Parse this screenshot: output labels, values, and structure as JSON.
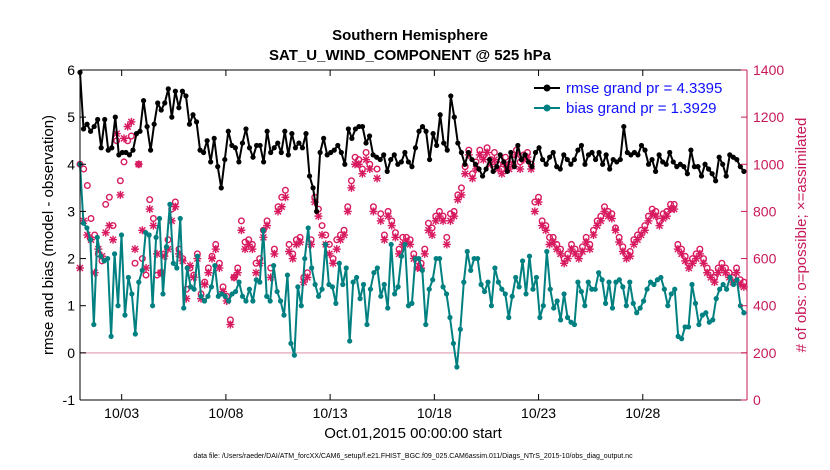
{
  "chart_data": {
    "type": "line",
    "title": "Southern Hemisphere",
    "subtitle": "SAT_U_WIND_COMPONENT @ 525 hPa",
    "xlabel": "Oct.01,2015 00:00:00 start",
    "ylabel": "rmse and bias (model - observation)",
    "y2label": "# of obs: o=possible; ×=assimilated",
    "footnote": "data file: /Users/raeder/DAI/ATM_forcXX/CAM6_setup/f.e21.FHIST_BGC.f09_025.CAM6assim.011/Diags_NTrS_2015-10/obs_diag_output.nc",
    "xlim": [
      1,
      33
    ],
    "ylim": [
      -1,
      6
    ],
    "y2lim": [
      0,
      1400
    ],
    "x_ticks": [
      3,
      8,
      13,
      18,
      23,
      28
    ],
    "x_tick_labels": [
      "10/03",
      "10/08",
      "10/13",
      "10/18",
      "10/23",
      "10/28"
    ],
    "y_ticks": [
      -1,
      0,
      1,
      2,
      3,
      4,
      5,
      6
    ],
    "y_tick_labels": [
      "-1",
      "0",
      "1",
      "2",
      "3",
      "4",
      "5",
      "6"
    ],
    "y2_ticks": [
      0,
      200,
      400,
      600,
      800,
      1000,
      1200,
      1400
    ],
    "y2_tick_labels": [
      "0",
      "200",
      "400",
      "600",
      "800",
      "1000",
      "1200",
      "1400"
    ],
    "zero_line": 0,
    "legend": {
      "location": "top-right"
    },
    "series": [
      {
        "name": "rmse grand pr = 4.3395",
        "axis": "left",
        "color": "#000000",
        "values": [
          5.95,
          4.75,
          4.85,
          4.7,
          4.8,
          4.95,
          4.35,
          4.95,
          4.3,
          4.35,
          5.0,
          4.2,
          4.25,
          4.25,
          4.2,
          4.3,
          4.65,
          4.7,
          5.35,
          4.8,
          4.3,
          4.85,
          5.3,
          5.15,
          5.3,
          5.6,
          5.0,
          5.55,
          5.2,
          5.55,
          5.45,
          4.85,
          5.05,
          4.9,
          4.3,
          4.25,
          4.5,
          4.05,
          4.55,
          3.95,
          3.5,
          4.1,
          4.7,
          4.4,
          4.35,
          4.05,
          4.45,
          4.75,
          4.35,
          4.15,
          4.4,
          4.4,
          4.05,
          4.7,
          4.25,
          4.35,
          4.45,
          4.25,
          4.7,
          4.2,
          4.65,
          4.35,
          4.45,
          4.35,
          4.65,
          3.75,
          3.5,
          3.0,
          4.25,
          4.55,
          4.2,
          4.25,
          4.3,
          4.4,
          4.25,
          4.0,
          4.75,
          4.55,
          4.75,
          4.8,
          4.8,
          4.45,
          4.6,
          4.2,
          4.15,
          4.1,
          4.2,
          3.85,
          4.1,
          4.2,
          4.0,
          4.05,
          4.25,
          4.05,
          3.95,
          4.35,
          4.7,
          4.8,
          4.7,
          4.1,
          4.65,
          4.4,
          5.05,
          4.45,
          4.3,
          5.45,
          5.0,
          4.45,
          4.25,
          4.0,
          4.25,
          4.1,
          4.0,
          3.9,
          3.75,
          3.9,
          4.1,
          3.85,
          3.95,
          4.2,
          4.05,
          3.85,
          4.25,
          3.95,
          4.4,
          4.1,
          4.2,
          4.05,
          3.95,
          4.25,
          4.35,
          4.1,
          4.0,
          4.15,
          4.25,
          3.95,
          3.9,
          4.2,
          4.1,
          4.0,
          4.1,
          4.3,
          4.4,
          4.0,
          4.2,
          4.25,
          4.1,
          4.25,
          4.0,
          4.2,
          3.9,
          4.1,
          4.05,
          4.1,
          4.8,
          4.25,
          4.2,
          4.25,
          4.2,
          4.4,
          4.3,
          4.0,
          4.1,
          3.85,
          4.2,
          4.05,
          4.0,
          4.25,
          4.05,
          3.95,
          4.0,
          3.95,
          3.8,
          4.3,
          3.95,
          3.95,
          3.75,
          4.0,
          3.9,
          3.8,
          3.65,
          4.15,
          4.0,
          3.75,
          4.2,
          4.15,
          4.1,
          3.95,
          3.85
        ],
        "values_x_start": 1,
        "values_x_end": 32.85
      },
      {
        "name": "bias grand pr = 1.3929",
        "axis": "left",
        "color": "#008080",
        "values": [
          4.0,
          2.75,
          2.65,
          2.4,
          0.6,
          2.45,
          2.05,
          1.95,
          2.0,
          0.35,
          2.1,
          1.0,
          2.5,
          0.8,
          1.6,
          1.25,
          0.4,
          1.5,
          1.75,
          2.55,
          2.5,
          1.0,
          2.45,
          2.85,
          1.25,
          2.25,
          3.15,
          1.9,
          1.8,
          2.85,
          0.95,
          1.8,
          1.4,
          1.35,
          2.05,
          1.2,
          1.1,
          1.2,
          1.4,
          1.85,
          1.2,
          1.25,
          1.2,
          1.1,
          1.25,
          1.3,
          1.5,
          1.2,
          1.1,
          1.35,
          1.1,
          1.55,
          1.5,
          2.6,
          1.2,
          1.1,
          1.85,
          1.3,
          1.1,
          0.8,
          1.65,
          0.2,
          -0.05,
          1.4,
          1.0,
          2.0,
          2.65,
          1.8,
          1.45,
          1.2,
          1.35,
          2.3,
          1.45,
          1.4,
          1.05,
          1.9,
          1.45,
          1.8,
          0.25,
          1.5,
          1.6,
          1.15,
          1.45,
          0.6,
          1.35,
          1.7,
          1.8,
          1.2,
          1.45,
          0.95,
          2.3,
          1.25,
          1.4,
          2.05,
          2.3,
          1.0,
          1.05,
          2.0,
          2.0,
          1.75,
          0.6,
          1.35,
          1.55,
          2.0,
          2.0,
          1.4,
          1.25,
          0.75,
          0.2,
          -0.3,
          0.5,
          1.5,
          2.15,
          1.75,
          2.0,
          2.0,
          1.45,
          1.3,
          1.5,
          1.0,
          1.8,
          1.5,
          1.35,
          1.25,
          0.75,
          1.2,
          1.6,
          1.4,
          1.95,
          1.25,
          2.05,
          1.35,
          1.6,
          0.75,
          1.0,
          2.15,
          1.35,
          0.95,
          1.1,
          0.7,
          1.25,
          0.75,
          0.65,
          0.6,
          1.5,
          1.3,
          1.0,
          1.5,
          1.35,
          1.35,
          1.7,
          1.55,
          1.05,
          1.5,
          0.95,
          1.5,
          1.55,
          1.4,
          1.0,
          1.5,
          1.05,
          0.85,
          0.95,
          1.1,
          1.35,
          1.5,
          1.45,
          1.55,
          1.6,
          1.35,
          1.0,
          1.25,
          1.35,
          0.35,
          0.3,
          0.55,
          0.55,
          1.45,
          1.05,
          0.6,
          0.8,
          0.85,
          0.65,
          0.7,
          1.15,
          1.35,
          1.45,
          1.35,
          1.6,
          1.45,
          1.55,
          1.0,
          0.85
        ],
        "values_x_start": 1,
        "values_x_end": 32.85
      },
      {
        "name": "# of obs possible",
        "axis": "right",
        "marker": "o",
        "color": "#d81b60",
        "values": [
          1000,
          980,
          910,
          770,
          700,
          620,
          590,
          830,
          860,
          740,
          1100,
          930,
          1010,
          1100,
          1120,
          580,
          1000,
          600,
          530,
          850,
          770,
          530,
          540,
          620,
          680,
          810,
          840,
          640,
          600,
          470,
          560,
          530,
          620,
          450,
          500,
          560,
          610,
          660,
          580,
          480,
          440,
          340,
          520,
          560,
          760,
          670,
          680,
          660,
          580,
          600,
          720,
          760,
          560,
          640,
          820,
          860,
          890,
          660,
          620,
          680,
          690,
          520,
          540,
          680,
          860,
          810,
          740,
          700,
          660,
          600,
          680,
          700,
          720,
          820,
          930,
          1030,
          1020,
          980,
          1050,
          1000,
          820,
          980,
          790,
          700,
          800,
          760,
          710,
          640,
          690,
          690,
          680,
          620,
          590,
          580,
          640,
          750,
          730,
          780,
          800,
          780,
          690,
          790,
          800,
          870,
          900,
          990,
          1060,
          960,
          1010,
          1060,
          1040,
          1070,
          1020,
          1050,
          1000,
          980,
          1030,
          1000,
          1020,
          1060,
          1010,
          1040,
          1050,
          1000,
          840,
          860,
          760,
          740,
          690,
          690,
          660,
          640,
          600,
          620,
          660,
          640,
          620,
          650,
          690,
          660,
          720,
          760,
          780,
          820,
          800,
          790,
          730,
          690,
          650,
          620,
          630,
          680,
          700,
          720,
          740,
          780,
          810,
          800,
          760,
          790,
          800,
          830,
          830,
          660,
          640,
          610,
          580,
          600,
          620,
          640,
          600,
          560,
          540,
          520,
          560,
          580,
          560,
          540,
          520,
          560,
          510,
          500
        ],
        "values_x_start": 1,
        "values_x_end": 32.85
      },
      {
        "name": "# of obs assimilated",
        "axis": "right",
        "marker": "*",
        "color": "#d81b60",
        "values": [
          560,
          760,
          700,
          680,
          540,
          640,
          610,
          710,
          740,
          680,
          1130,
          870,
          1110,
          1160,
          1180,
          640,
          1000,
          720,
          560,
          810,
          740,
          620,
          540,
          610,
          640,
          760,
          820,
          620,
          590,
          430,
          570,
          520,
          600,
          430,
          490,
          540,
          600,
          640,
          560,
          460,
          420,
          320,
          520,
          540,
          720,
          640,
          660,
          640,
          540,
          580,
          690,
          740,
          520,
          620,
          800,
          820,
          860,
          630,
          600,
          660,
          670,
          500,
          520,
          660,
          840,
          780,
          700,
          660,
          620,
          580,
          640,
          680,
          700,
          800,
          900,
          1000,
          1000,
          960,
          1020,
          980,
          800,
          940,
          760,
          680,
          780,
          740,
          690,
          620,
          660,
          670,
          660,
          600,
          560,
          560,
          620,
          720,
          700,
          760,
          780,
          760,
          660,
          760,
          780,
          850,
          870,
          960,
          1040,
          940,
          980,
          1040,
          1020,
          1050,
          1000,
          1020,
          980,
          960,
          1000,
          980,
          1000,
          1040,
          980,
          1020,
          1030,
          980,
          800,
          840,
          740,
          720,
          660,
          670,
          640,
          620,
          580,
          600,
          640,
          620,
          600,
          630,
          670,
          640,
          700,
          740,
          760,
          800,
          780,
          770,
          720,
          670,
          630,
          600,
          610,
          660,
          680,
          700,
          720,
          760,
          790,
          780,
          740,
          770,
          780,
          810,
          810,
          640,
          620,
          590,
          560,
          580,
          600,
          620,
          580,
          540,
          520,
          500,
          540,
          560,
          540,
          520,
          500,
          540,
          490,
          480
        ],
        "values_x_start": 1,
        "values_x_end": 32.85
      }
    ]
  }
}
